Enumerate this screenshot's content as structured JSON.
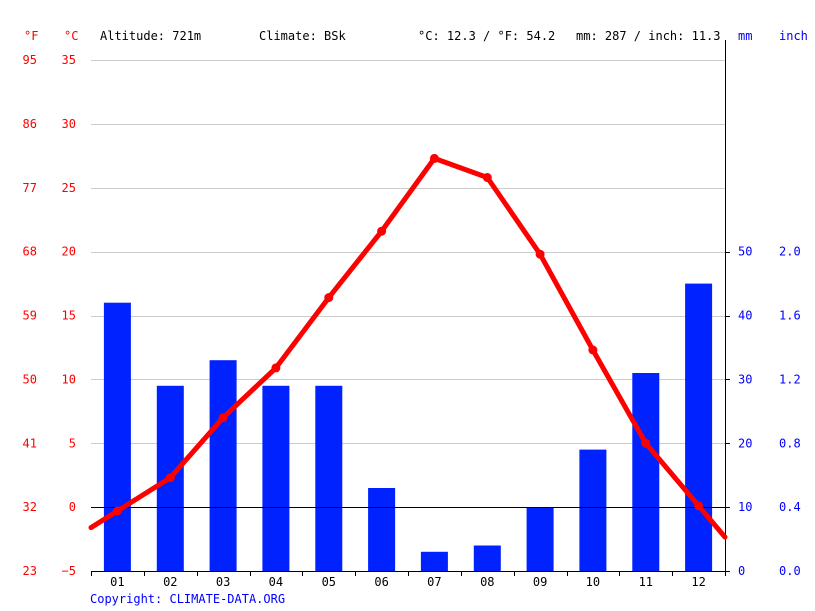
{
  "header": {
    "unit_f": "°F",
    "unit_c": "°C",
    "altitude": "Altitude: 721m",
    "climate": "Climate: BSk",
    "temp_avg": "°C: 12.3 / °F: 54.2",
    "precip_total": "mm: 287 / inch: 11.3",
    "unit_mm": "mm",
    "unit_inch": "inch"
  },
  "copyright": "Copyright: CLIMATE-DATA.ORG",
  "colors": {
    "temperature": "#ff0000",
    "precipitation": "#0022ff",
    "grid": "#cccccc",
    "axis": "#000000"
  },
  "chart_data": {
    "type": "bar",
    "categories": [
      "01",
      "02",
      "03",
      "04",
      "05",
      "06",
      "07",
      "08",
      "09",
      "10",
      "11",
      "12"
    ],
    "series": [
      {
        "type": "bar",
        "axis": "right",
        "values": [
          42,
          29,
          33,
          29,
          29,
          13,
          3,
          4,
          10,
          19,
          31,
          45
        ]
      },
      {
        "type": "line",
        "axis": "left",
        "values": [
          -0.3,
          2.3,
          7.0,
          10.9,
          16.4,
          21.6,
          27.3,
          25.8,
          19.8,
          12.3,
          5.0,
          0.1
        ]
      }
    ],
    "y_left_celsius": {
      "ticks": [
        35,
        30,
        25,
        20,
        15,
        10,
        5,
        0,
        -5
      ],
      "labels": [
        "35",
        "30",
        "25",
        "20",
        "15",
        "10",
        "5",
        "0",
        "−5"
      ],
      "range": [
        -5,
        35
      ]
    },
    "y_left_fahrenheit": {
      "labels": [
        "95",
        "86",
        "77",
        "68",
        "59",
        "50",
        "41",
        "32",
        "23"
      ]
    },
    "y_right_mm": {
      "ticks": [
        50,
        40,
        30,
        20,
        10,
        0
      ],
      "labels": [
        "50",
        "40",
        "30",
        "20",
        "10",
        "0"
      ],
      "range": [
        0,
        80
      ]
    },
    "y_right_inch": {
      "labels": [
        "2.0",
        "1.6",
        "1.2",
        "0.8",
        "0.4",
        "0.0"
      ]
    },
    "grid": true
  }
}
